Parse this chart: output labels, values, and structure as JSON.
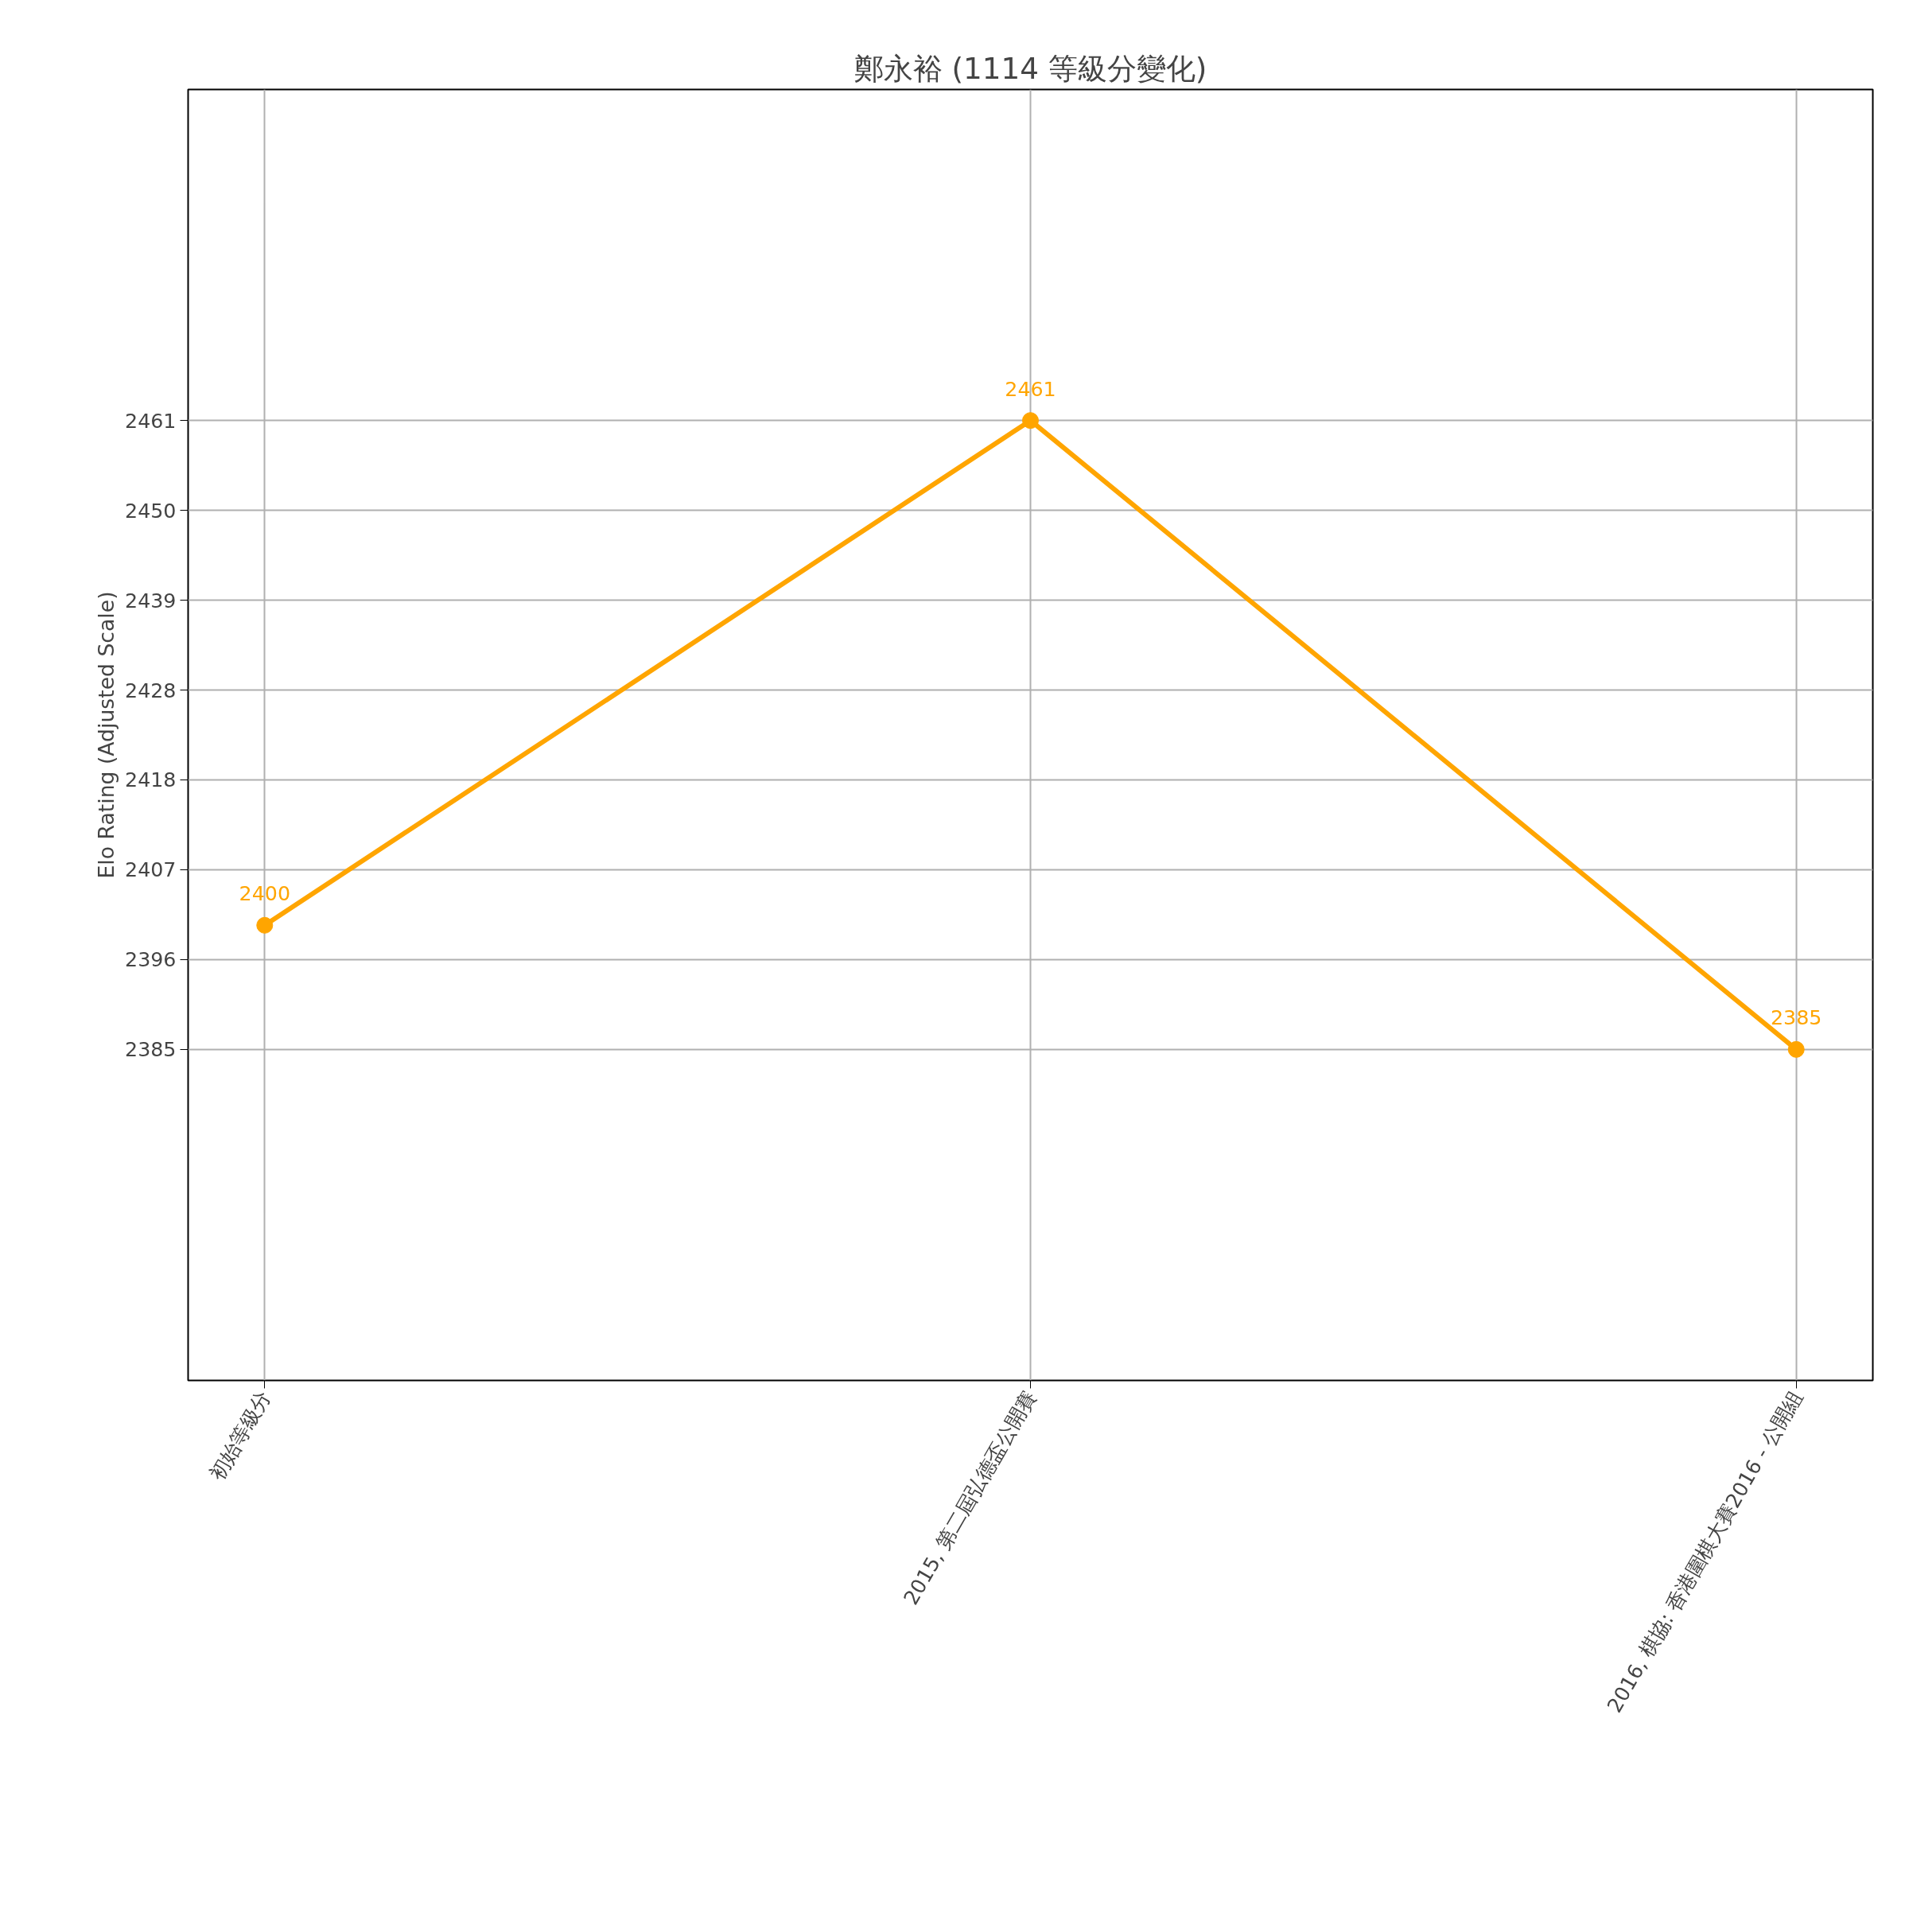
{
  "chart_data": {
    "type": "line",
    "title": "鄭永裕 (1114 等級分變化)",
    "ylabel": "Elo Rating (Adjusted Scale)",
    "categories": [
      "初始等級分",
      "2015, 第二屆弘德盃公開賽",
      "2016, 棋協: 香港圍棋大賽2016 - 公開組"
    ],
    "series": [
      {
        "color": "#ffa500",
        "values": [
          2400,
          2461,
          2385
        ]
      }
    ],
    "ylim": [
      2345,
      2501
    ],
    "yticks": [
      {
        "value": 2385,
        "label": "2385"
      },
      {
        "value": 2395.86,
        "label": "2396"
      },
      {
        "value": 2406.71,
        "label": "2407"
      },
      {
        "value": 2417.57,
        "label": "2418"
      },
      {
        "value": 2428.43,
        "label": "2428"
      },
      {
        "value": 2439.29,
        "label": "2439"
      },
      {
        "value": 2450.14,
        "label": "2450"
      },
      {
        "value": 2461,
        "label": "2461"
      }
    ],
    "grid": true,
    "marker": "circle",
    "line_style": "solid",
    "data_labels": true
  }
}
